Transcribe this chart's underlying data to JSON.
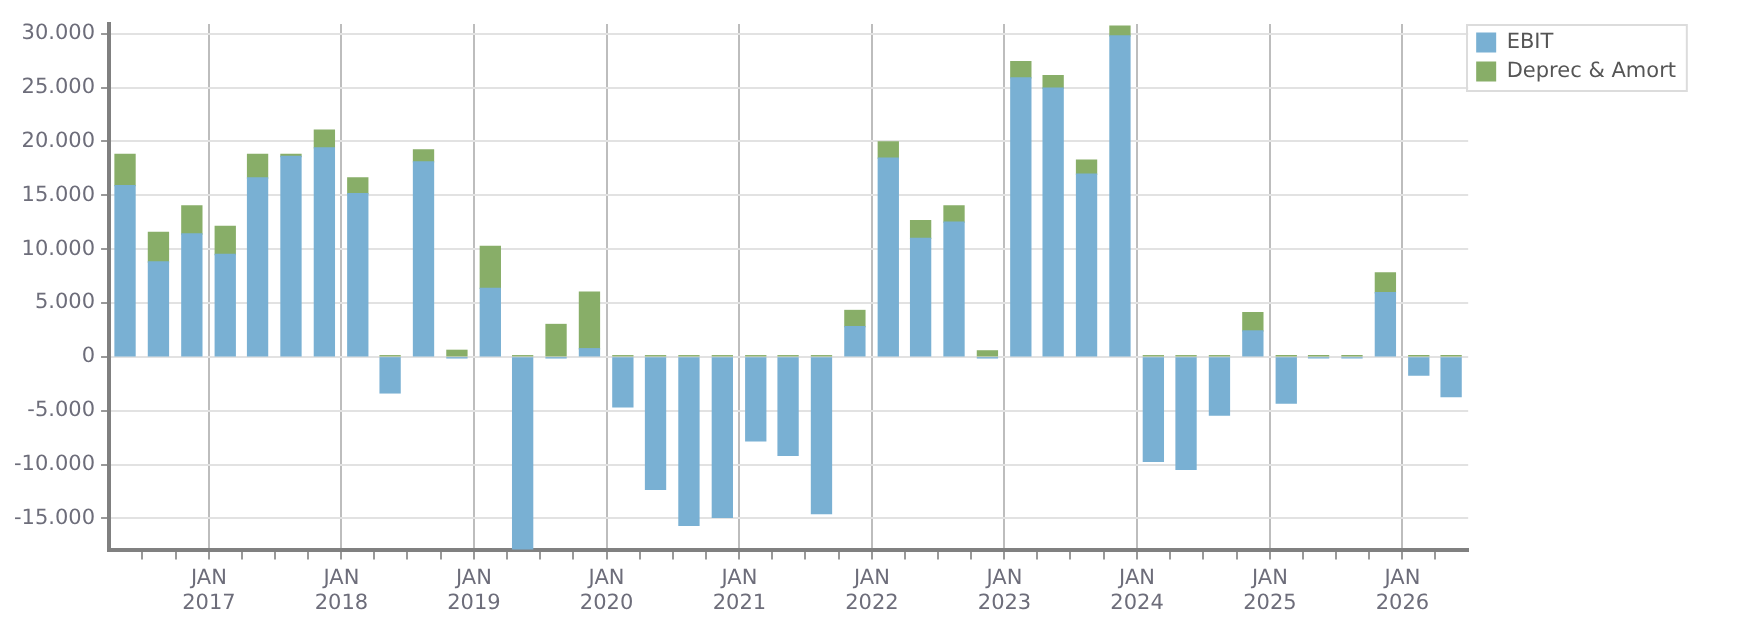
{
  "chart_data": {
    "type": "bar",
    "stacked": true,
    "x": [
      "2016-05-15",
      "2016-08-15",
      "2016-11-15",
      "2017-02-15",
      "2017-05-15",
      "2017-08-15",
      "2017-11-15",
      "2018-02-15",
      "2018-05-15",
      "2018-08-15",
      "2018-11-15",
      "2019-02-15",
      "2019-05-15",
      "2019-08-15",
      "2019-11-15",
      "2020-02-15",
      "2020-05-15",
      "2020-08-15",
      "2020-11-15",
      "2021-02-15",
      "2021-05-15",
      "2021-08-15",
      "2021-11-15",
      "2022-02-15",
      "2022-05-15",
      "2022-08-15",
      "2022-11-15",
      "2023-02-15",
      "2023-05-15",
      "2023-08-15",
      "2023-11-15",
      "2024-02-15",
      "2024-05-15",
      "2024-08-15",
      "2024-11-15",
      "2025-02-15",
      "2025-05-15",
      "2025-08-15",
      "2025-11-15",
      "2026-02-15",
      "2026-05-15"
    ],
    "series": [
      {
        "name": "EBIT",
        "color": "#79b0d3",
        "values": [
          15900,
          8800,
          11400,
          9500,
          16600,
          18600,
          19400,
          15150,
          -3350,
          18100,
          -100,
          6350,
          -17900,
          -100,
          750,
          -4650,
          -12300,
          -15650,
          -14900,
          -7800,
          -9150,
          -14550,
          2800,
          18450,
          11000,
          12500,
          -100,
          25900,
          24950,
          16950,
          29800,
          -9700,
          -10450,
          -5400,
          2400,
          -4300,
          -100,
          -100,
          5950,
          -1700,
          -3700
        ]
      },
      {
        "name": "Deprec & Amort",
        "color": "#88ae68",
        "values": [
          2900,
          2750,
          2600,
          2600,
          2200,
          200,
          1650,
          1450,
          100,
          1100,
          600,
          3900,
          100,
          3000,
          5250,
          100,
          100,
          100,
          100,
          100,
          100,
          100,
          1500,
          1500,
          1650,
          1500,
          550,
          1500,
          1150,
          1300,
          900,
          100,
          100,
          100,
          1700,
          100,
          100,
          100,
          1850,
          100,
          100
        ]
      }
    ],
    "xlim": [
      "2016-04-01",
      "2026-07-01"
    ],
    "xticks": [
      {
        "value": "2016-07-01",
        "label": null
      },
      {
        "value": "2016-10-01",
        "label": null
      },
      {
        "value": "2017-01-01",
        "label": "JAN 2017"
      },
      {
        "value": "2017-04-01",
        "label": null
      },
      {
        "value": "2017-07-01",
        "label": null
      },
      {
        "value": "2017-10-01",
        "label": null
      },
      {
        "value": "2018-01-01",
        "label": "JAN 2018"
      },
      {
        "value": "2018-04-01",
        "label": null
      },
      {
        "value": "2018-07-01",
        "label": null
      },
      {
        "value": "2018-10-01",
        "label": null
      },
      {
        "value": "2019-01-01",
        "label": "JAN 2019"
      },
      {
        "value": "2019-04-01",
        "label": null
      },
      {
        "value": "2019-07-01",
        "label": null
      },
      {
        "value": "2019-10-01",
        "label": null
      },
      {
        "value": "2020-01-01",
        "label": "JAN 2020"
      },
      {
        "value": "2020-04-01",
        "label": null
      },
      {
        "value": "2020-07-01",
        "label": null
      },
      {
        "value": "2020-10-01",
        "label": null
      },
      {
        "value": "2021-01-01",
        "label": "JAN 2021"
      },
      {
        "value": "2021-04-01",
        "label": null
      },
      {
        "value": "2021-07-01",
        "label": null
      },
      {
        "value": "2021-10-01",
        "label": null
      },
      {
        "value": "2022-01-01",
        "label": "JAN 2022"
      },
      {
        "value": "2022-04-01",
        "label": null
      },
      {
        "value": "2022-07-01",
        "label": null
      },
      {
        "value": "2022-10-01",
        "label": null
      },
      {
        "value": "2023-01-01",
        "label": "JAN 2023"
      },
      {
        "value": "2023-04-01",
        "label": null
      },
      {
        "value": "2023-07-01",
        "label": null
      },
      {
        "value": "2023-10-01",
        "label": null
      },
      {
        "value": "2024-01-01",
        "label": "JAN 2024"
      },
      {
        "value": "2024-04-01",
        "label": null
      },
      {
        "value": "2024-07-01",
        "label": null
      },
      {
        "value": "2024-10-01",
        "label": null
      },
      {
        "value": "2025-01-01",
        "label": "JAN 2025"
      },
      {
        "value": "2025-04-01",
        "label": null
      },
      {
        "value": "2025-07-01",
        "label": null
      },
      {
        "value": "2025-10-01",
        "label": null
      },
      {
        "value": "2026-01-01",
        "label": "JAN 2026"
      },
      {
        "value": "2026-04-01",
        "label": null
      }
    ],
    "ylim": [
      -17900,
      30900
    ],
    "yticks": [
      {
        "value": -15000,
        "label": "-15.000"
      },
      {
        "value": -10000,
        "label": "-10.000"
      },
      {
        "value": -5000,
        "label": "-5.000"
      },
      0,
      {
        "value": 5000,
        "label": "5.000"
      },
      {
        "value": 10000,
        "label": "10.000"
      },
      {
        "value": 15000,
        "label": "15.000"
      },
      {
        "value": 20000,
        "label": "20.000"
      },
      {
        "value": 25000,
        "label": "25.000"
      },
      {
        "value": 30000,
        "label": "30.000"
      }
    ],
    "grid": true,
    "legend": "top right"
  }
}
